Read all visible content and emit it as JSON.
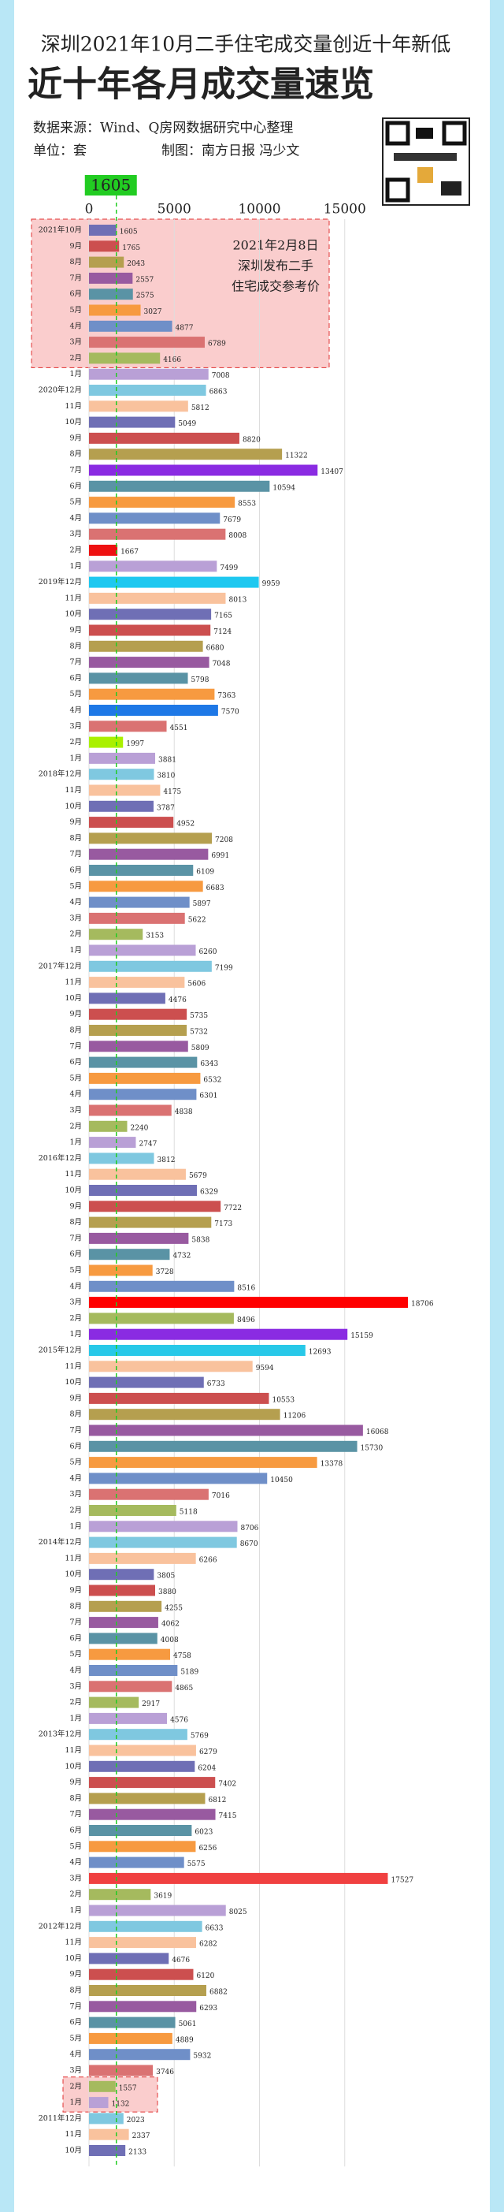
{
  "chart_data": {
    "type": "bar",
    "title": "深圳2021年10月二手住宅成交量创近十年新低",
    "subtitle": "近十年各月成交量速览",
    "source": "数据来源：Wind、Q房网数据研究中心整理",
    "unit": "单位：套",
    "credit": "制图：南方日报 冯少文",
    "annotation": [
      "2021年2月8日",
      "深圳发布二手",
      "住宅成交参考价"
    ],
    "reference_value": 1605,
    "reference_color": "#22cc22",
    "orientation": "horizontal",
    "categories": [
      "2021年10月",
      "9月",
      "8月",
      "7月",
      "6月",
      "5月",
      "4月",
      "3月",
      "2月",
      "1月",
      "2020年12月",
      "11月",
      "10月",
      "9月",
      "8月",
      "7月",
      "6月",
      "5月",
      "4月",
      "3月",
      "2月",
      "1月",
      "2019年12月",
      "11月",
      "10月",
      "9月",
      "8月",
      "7月",
      "6月",
      "5月",
      "4月",
      "3月",
      "2月",
      "1月",
      "2018年12月",
      "11月",
      "10月",
      "9月",
      "8月",
      "7月",
      "6月",
      "5月",
      "4月",
      "3月",
      "2月",
      "1月",
      "2017年12月",
      "11月",
      "10月",
      "9月",
      "8月",
      "7月",
      "6月",
      "5月",
      "4月",
      "3月",
      "2月",
      "1月",
      "2016年12月",
      "11月",
      "10月",
      "9月",
      "8月",
      "7月",
      "6月",
      "5月",
      "4月",
      "3月",
      "2月",
      "1月",
      "2015年12月",
      "11月",
      "10月",
      "9月",
      "8月",
      "7月",
      "6月",
      "5月",
      "4月",
      "3月",
      "2月",
      "1月",
      "2014年12月",
      "11月",
      "10月",
      "9月",
      "8月",
      "7月",
      "6月",
      "5月",
      "4月",
      "3月",
      "2月",
      "1月",
      "2013年12月",
      "11月",
      "10月",
      "9月",
      "8月",
      "7月",
      "6月",
      "5月",
      "4月",
      "3月",
      "2月",
      "1月",
      "2012年12月",
      "11月",
      "10月",
      "9月",
      "8月",
      "7月",
      "6月",
      "5月",
      "4月",
      "3月",
      "2月",
      "1月",
      "2011年12月",
      "11月",
      "10月"
    ],
    "values": [
      1605,
      1765,
      2043,
      2557,
      2575,
      3027,
      4877,
      6789,
      4166,
      7008,
      6863,
      5812,
      5049,
      8820,
      11322,
      13407,
      10594,
      8553,
      7679,
      8008,
      1667,
      7499,
      9959,
      8013,
      7165,
      7124,
      6680,
      7048,
      5798,
      7363,
      7570,
      4551,
      1997,
      3881,
      3810,
      4175,
      3787,
      4952,
      7208,
      6991,
      6109,
      6683,
      5897,
      5622,
      3153,
      6260,
      7199,
      5606,
      4476,
      5735,
      5732,
      5809,
      6343,
      6532,
      6301,
      4838,
      2240,
      2747,
      3812,
      5679,
      6329,
      7722,
      7173,
      5838,
      4732,
      3728,
      8516,
      18706,
      8496,
      15159,
      12693,
      9594,
      6733,
      10553,
      11206,
      16068,
      15730,
      13378,
      10450,
      7016,
      5118,
      8706,
      8670,
      6266,
      3805,
      3880,
      4255,
      4062,
      4008,
      4758,
      5189,
      4865,
      2917,
      4576,
      5769,
      6279,
      6204,
      7402,
      6812,
      7415,
      6023,
      6256,
      5575,
      17527,
      3619,
      8025,
      6633,
      6282,
      4676,
      6120,
      6882,
      6293,
      5061,
      4889,
      5932,
      3746,
      1557,
      1132,
      2023,
      2337,
      2133
    ],
    "colors": [
      "#6f6fb5",
      "#cc4f4f",
      "#b59f4f",
      "#985aa0",
      "#5a93a5",
      "#f79a40",
      "#6f8fc8",
      "#da7272",
      "#a5ba5e",
      "#b9a0d6",
      "#7fc8e0",
      "#f9c29d",
      "#6f6fb5",
      "#cc4f4f",
      "#b59f4f",
      "#8a2be2",
      "#5a93a5",
      "#f79a40",
      "#6f8fc8",
      "#da7272",
      "#ee1111",
      "#b9a0d6",
      "#1ec8f0",
      "#f9c29d",
      "#6f6fb5",
      "#cc4f4f",
      "#b59f4f",
      "#985aa0",
      "#5a93a5",
      "#f79a40",
      "#1e78e6",
      "#da7272",
      "#aaf000",
      "#b9a0d6",
      "#7fc8e0",
      "#f9c29d",
      "#6f6fb5",
      "#cc4f4f",
      "#b59f4f",
      "#985aa0",
      "#5a93a5",
      "#f79a40",
      "#6f8fc8",
      "#da7272",
      "#a5ba5e",
      "#b9a0d6",
      "#7fc8e0",
      "#f9c29d",
      "#6f6fb5",
      "#cc4f4f",
      "#b59f4f",
      "#985aa0",
      "#5a93a5",
      "#f79a40",
      "#6f8fc8",
      "#da7272",
      "#a5ba5e",
      "#b9a0d6",
      "#7fc8e0",
      "#f9c29d",
      "#6f6fb5",
      "#cc4f4f",
      "#b59f4f",
      "#985aa0",
      "#5a93a5",
      "#f79a40",
      "#6f8fc8",
      "#ff0000",
      "#a5ba5e",
      "#8a2be2",
      "#28c8e8",
      "#f9c29d",
      "#6f6fb5",
      "#cc4f4f",
      "#b59f4f",
      "#985aa0",
      "#5a93a5",
      "#f79a40",
      "#6f8fc8",
      "#da7272",
      "#a5ba5e",
      "#b9a0d6",
      "#7fc8e0",
      "#f9c29d",
      "#6f6fb5",
      "#cc4f4f",
      "#b59f4f",
      "#985aa0",
      "#5a93a5",
      "#f79a40",
      "#6f8fc8",
      "#da7272",
      "#a5ba5e",
      "#b9a0d6",
      "#7fc8e0",
      "#f9c29d",
      "#6f6fb5",
      "#cc4f4f",
      "#b59f4f",
      "#985aa0",
      "#5a93a5",
      "#f79a40",
      "#6f8fc8",
      "#f04040",
      "#a5ba5e",
      "#b9a0d6",
      "#7fc8e0",
      "#f9c29d",
      "#6f6fb5",
      "#cc4f4f",
      "#b59f4f",
      "#985aa0",
      "#5a93a5",
      "#f79a40",
      "#6f8fc8",
      "#da7272",
      "#a5ba5e",
      "#b9a0d6",
      "#7fc8e0",
      "#f9c29d",
      "#6f6fb5"
    ],
    "xlim": [
      0,
      20000
    ],
    "xticks": [
      0,
      5000,
      10000,
      15000
    ],
    "grid": true
  }
}
